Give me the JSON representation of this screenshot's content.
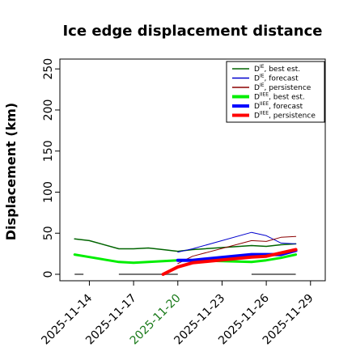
{
  "chart_data": {
    "type": "line",
    "title": "Ice edge displacement distance",
    "ylabel": "Displacement (km)",
    "xlabel": "",
    "x_axis_type": "date",
    "xlim": [
      "2025-11-12",
      "2025-11-30"
    ],
    "ylim": [
      0,
      262
    ],
    "yticks": [
      0,
      50,
      100,
      150,
      200,
      250
    ],
    "xticks": [
      "2025-11-14",
      "2025-11-17",
      "2025-11-20",
      "2025-11-23",
      "2025-11-26",
      "2025-11-29"
    ],
    "xtick_colors": [
      "#000000",
      "#000000",
      "#1a7a1a",
      "#000000",
      "#000000",
      "#000000"
    ],
    "grid": false,
    "legend_position": "top-right",
    "legend": [
      {
        "prefix": "D",
        "sup": "IE",
        "text": ", best est.",
        "color": "#006400",
        "width": "thin"
      },
      {
        "prefix": "D",
        "sup": "IE",
        "text": ", forecast",
        "color": "#0000cd",
        "width": "thin"
      },
      {
        "prefix": "D",
        "sup": "IE",
        "text": ", persistence",
        "color": "#8b0000",
        "width": "thin"
      },
      {
        "prefix": "D",
        "sup": "IIEE",
        "text": ", best est.",
        "color": "#00ee00",
        "width": "thick"
      },
      {
        "prefix": "D",
        "sup": "IIEE",
        "text": ", forecast",
        "color": "#0000ff",
        "width": "thick"
      },
      {
        "prefix": "D",
        "sup": "IIEE",
        "text": ", persistence",
        "color": "#ff0000",
        "width": "thick"
      }
    ],
    "series": [
      {
        "name": "DIE, best est.",
        "color": "#006400",
        "stroke_width": 1.5,
        "points": [
          [
            "2025-11-13",
            43
          ],
          [
            "2025-11-14",
            41
          ],
          [
            "2025-11-16",
            31
          ],
          [
            "2025-11-17",
            31
          ],
          [
            "2025-11-18",
            32
          ],
          [
            "2025-11-19",
            30
          ],
          [
            "2025-11-20",
            28
          ],
          [
            "2025-11-21",
            30
          ],
          [
            "2025-11-25",
            35
          ],
          [
            "2025-11-26",
            34
          ],
          [
            "2025-11-27",
            36
          ],
          [
            "2025-11-28",
            37
          ]
        ]
      },
      {
        "name": "DIE, forecast",
        "color": "#0000cd",
        "stroke_width": 1,
        "points": [
          [
            "2025-11-20",
            27
          ],
          [
            "2025-11-21",
            31
          ],
          [
            "2025-11-25",
            51
          ],
          [
            "2025-11-26",
            47
          ],
          [
            "2025-11-27",
            38
          ],
          [
            "2025-11-28",
            37
          ]
        ]
      },
      {
        "name": "DIE, persistence",
        "color": "#8b0000",
        "stroke_width": 1,
        "points": [
          [
            "2025-11-20",
            13
          ],
          [
            "2025-11-21",
            22
          ],
          [
            "2025-11-25",
            41
          ],
          [
            "2025-11-26",
            40
          ],
          [
            "2025-11-27",
            45
          ],
          [
            "2025-11-28",
            46
          ]
        ]
      },
      {
        "name": "DIIEE, best est.",
        "color": "#00ee00",
        "stroke_width": 3,
        "points": [
          [
            "2025-11-13",
            24
          ],
          [
            "2025-11-14",
            21
          ],
          [
            "2025-11-16",
            15
          ],
          [
            "2025-11-17",
            14
          ],
          [
            "2025-11-18",
            15
          ],
          [
            "2025-11-19",
            16
          ],
          [
            "2025-11-20",
            17
          ],
          [
            "2025-11-21",
            17
          ],
          [
            "2025-11-25",
            15
          ],
          [
            "2025-11-26",
            17
          ],
          [
            "2025-11-27",
            20
          ],
          [
            "2025-11-28",
            24
          ]
        ]
      },
      {
        "name": "DIIEE, forecast",
        "color": "#0000ff",
        "stroke_width": 4,
        "points": [
          [
            "2025-11-20",
            17
          ],
          [
            "2025-11-21",
            17
          ],
          [
            "2025-11-25",
            24
          ],
          [
            "2025-11-26",
            24
          ],
          [
            "2025-11-27",
            24
          ],
          [
            "2025-11-28",
            29
          ]
        ]
      },
      {
        "name": "DIIEE, persistence",
        "color": "#ff0000",
        "stroke_width": 4,
        "points": [
          [
            "2025-11-19",
            0
          ],
          [
            "2025-11-20",
            9
          ],
          [
            "2025-11-21",
            14
          ],
          [
            "2025-11-25",
            21
          ],
          [
            "2025-11-26",
            22
          ],
          [
            "2025-11-27",
            26
          ],
          [
            "2025-11-28",
            30
          ]
        ]
      }
    ],
    "baseline_segments": [
      {
        "color": "#777777",
        "y": 0,
        "from": "2025-11-13",
        "to": "2025-11-13.6"
      },
      {
        "color": "#777777",
        "y": 0,
        "from": "2025-11-16",
        "to": "2025-11-20"
      },
      {
        "color": "#777777",
        "y": 0,
        "from": "2025-11-25",
        "to": "2025-11-28"
      }
    ]
  }
}
